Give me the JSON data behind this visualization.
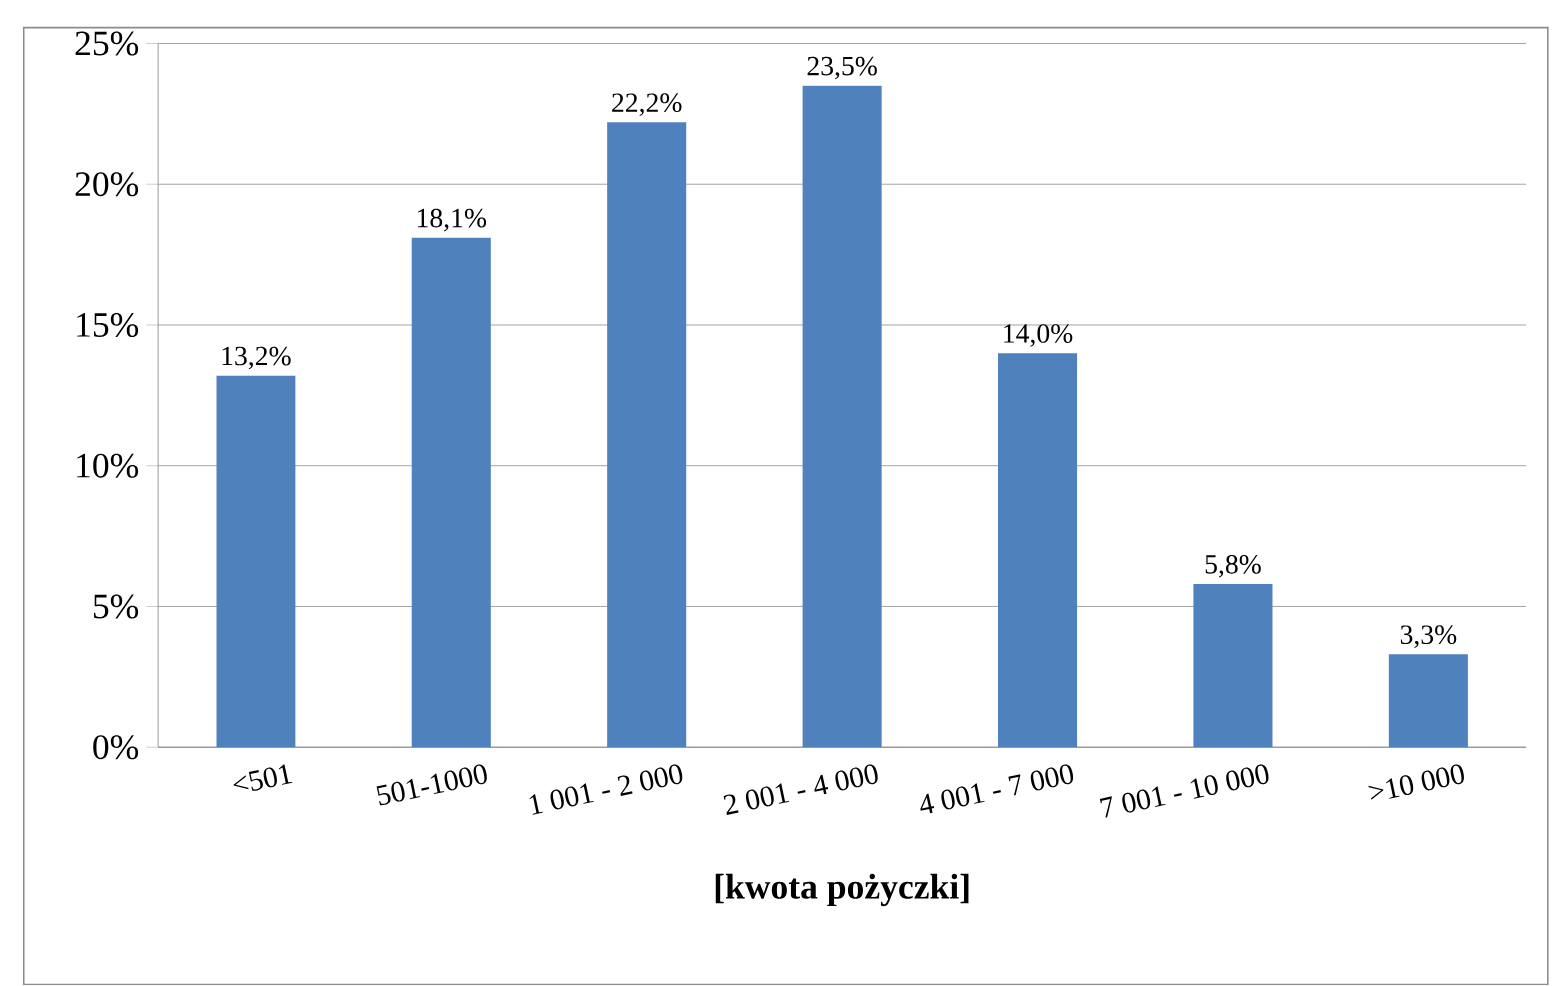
{
  "chart_data": {
    "type": "bar",
    "xlabel": "[kwota pożyczki]",
    "categories": [
      "<501",
      "501-1000",
      "1 001 - 2 000",
      "2 001 - 4 000",
      "4 001 - 7 000",
      "7 001 - 10 000",
      ">10 000"
    ],
    "values": [
      13.2,
      18.1,
      22.2,
      23.5,
      14.0,
      5.8,
      3.3
    ],
    "value_labels": [
      "13,2%",
      "18,1%",
      "22,2%",
      "23,5%",
      "14,0%",
      "5,8%",
      "3,3%"
    ],
    "color": "#4f81bd",
    "ylim": [
      0,
      25
    ],
    "yticks": [
      {
        "value": 0,
        "label": "0%"
      },
      {
        "value": 5,
        "label": "5%"
      },
      {
        "value": 10,
        "label": "10%"
      },
      {
        "value": 15,
        "label": "15%"
      },
      {
        "value": 20,
        "label": "20%"
      },
      {
        "value": 25,
        "label": "25%"
      }
    ],
    "grid": "y"
  }
}
